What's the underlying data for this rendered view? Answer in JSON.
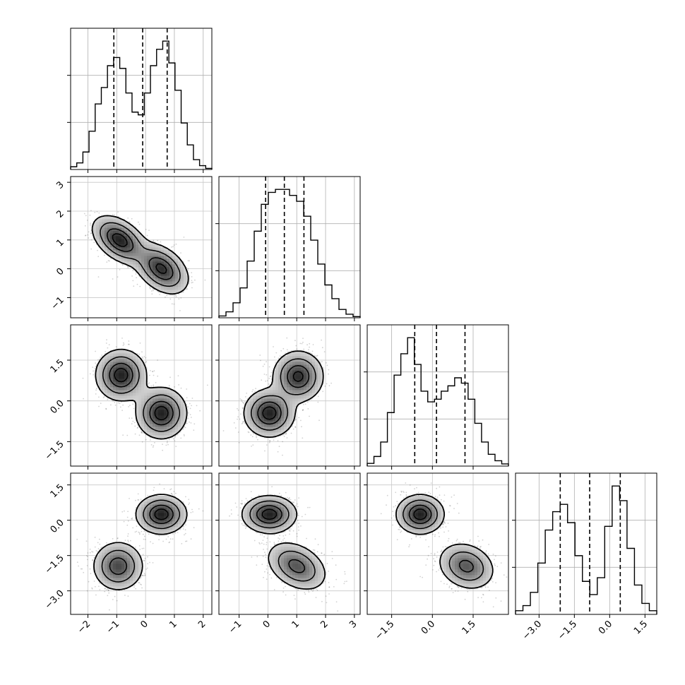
{
  "chart_data": {
    "type": "corner",
    "title": "",
    "grid": true,
    "variables": [
      {
        "label": "",
        "range": [
          -2.6,
          2.3
        ],
        "ticks": [
          -2,
          -1,
          0,
          1,
          2
        ],
        "tick_labels": [
          "−2",
          "−1",
          "0",
          "1",
          "2"
        ],
        "quantiles": [
          -1.1,
          -0.1,
          0.75
        ],
        "hist": [
          0.5,
          1.2,
          3.2,
          7,
          12,
          15,
          19,
          20.5,
          18.5,
          14,
          10.5,
          10,
          14,
          19,
          22,
          23.5,
          19.5,
          14.5,
          8.5,
          4.5,
          1.8,
          0.7,
          0.2
        ]
      },
      {
        "label": "",
        "range": [
          -1.7,
          3.2
        ],
        "ticks": [
          -1,
          0,
          1,
          2,
          3
        ],
        "tick_labels": [
          "−1",
          "0",
          "1",
          "2",
          "3"
        ],
        "quantiles": [
          -0.08,
          0.57,
          1.25
        ],
        "hist": [
          0.3,
          1,
          2.5,
          5,
          9.5,
          14.5,
          19,
          21,
          21.5,
          21.5,
          20.5,
          19.5,
          17,
          13,
          9,
          5.5,
          3.2,
          1.4,
          0.6,
          0.2
        ]
      },
      {
        "label": "",
        "range": [
          -2.4,
          2.8
        ],
        "ticks": [
          -1.5,
          0.0,
          1.5
        ],
        "tick_labels": [
          "−1.5",
          "0.0",
          "1.5"
        ],
        "quantiles": [
          -0.65,
          0.15,
          1.2
        ],
        "hist": [
          0.5,
          1.8,
          4.5,
          10,
          17,
          21,
          24,
          19,
          14,
          12,
          12.5,
          14,
          15,
          16.5,
          15.5,
          12.5,
          8,
          4.5,
          2.2,
          1,
          0.4
        ]
      },
      {
        "label": "",
        "range": [
          -4.0,
          2.0
        ],
        "ticks": [
          -3.0,
          -1.5,
          0.0,
          1.5
        ],
        "tick_labels": [
          "−3.0",
          "−1.5",
          "0.0",
          "1.5"
        ],
        "quantiles": [
          -2.1,
          -0.85,
          0.45
        ],
        "hist": [
          0.5,
          1.2,
          3,
          7,
          11.5,
          14,
          15,
          12.5,
          8,
          4.5,
          2.7,
          5,
          12,
          17.5,
          15.5,
          9,
          4,
          1.5,
          0.5
        ]
      }
    ],
    "pairs": [
      {
        "x": 0,
        "y": 1,
        "components": [
          {
            "mean": [
              -0.9,
              1.0
            ],
            "sd": [
              0.45,
              0.4
            ],
            "rho": -0.45
          },
          {
            "mean": [
              0.55,
              0.0
            ],
            "sd": [
              0.45,
              0.42
            ],
            "rho": -0.4
          }
        ]
      },
      {
        "x": 0,
        "y": 2,
        "components": [
          {
            "mean": [
              -0.85,
              0.95
            ],
            "sd": [
              0.42,
              0.45
            ],
            "rho": 0.0
          },
          {
            "mean": [
              0.55,
              -0.45
            ],
            "sd": [
              0.42,
              0.45
            ],
            "rho": 0.0
          }
        ]
      },
      {
        "x": 1,
        "y": 2,
        "components": [
          {
            "mean": [
              1.05,
              0.9
            ],
            "sd": [
              0.42,
              0.45
            ],
            "rho": 0.0
          },
          {
            "mean": [
              0.05,
              -0.45
            ],
            "sd": [
              0.42,
              0.42
            ],
            "rho": 0.0
          }
        ]
      },
      {
        "x": 0,
        "y": 3,
        "components": [
          {
            "mean": [
              0.55,
              0.25
            ],
            "sd": [
              0.42,
              0.4
            ],
            "rho": 0.0
          },
          {
            "mean": [
              -0.95,
              -1.95
            ],
            "sd": [
              0.42,
              0.5
            ],
            "rho": 0.0
          }
        ]
      },
      {
        "x": 1,
        "y": 3,
        "components": [
          {
            "mean": [
              0.05,
              0.25
            ],
            "sd": [
              0.45,
              0.38
            ],
            "rho": 0.0
          },
          {
            "mean": [
              1.0,
              -1.95
            ],
            "sd": [
              0.5,
              0.5
            ],
            "rho": -0.35
          }
        ]
      },
      {
        "x": 2,
        "y": 3,
        "components": [
          {
            "mean": [
              -0.45,
              0.25
            ],
            "sd": [
              0.42,
              0.4
            ],
            "rho": 0.0
          },
          {
            "mean": [
              1.25,
              -1.95
            ],
            "sd": [
              0.5,
              0.48
            ],
            "rho": -0.2
          }
        ]
      }
    ]
  }
}
